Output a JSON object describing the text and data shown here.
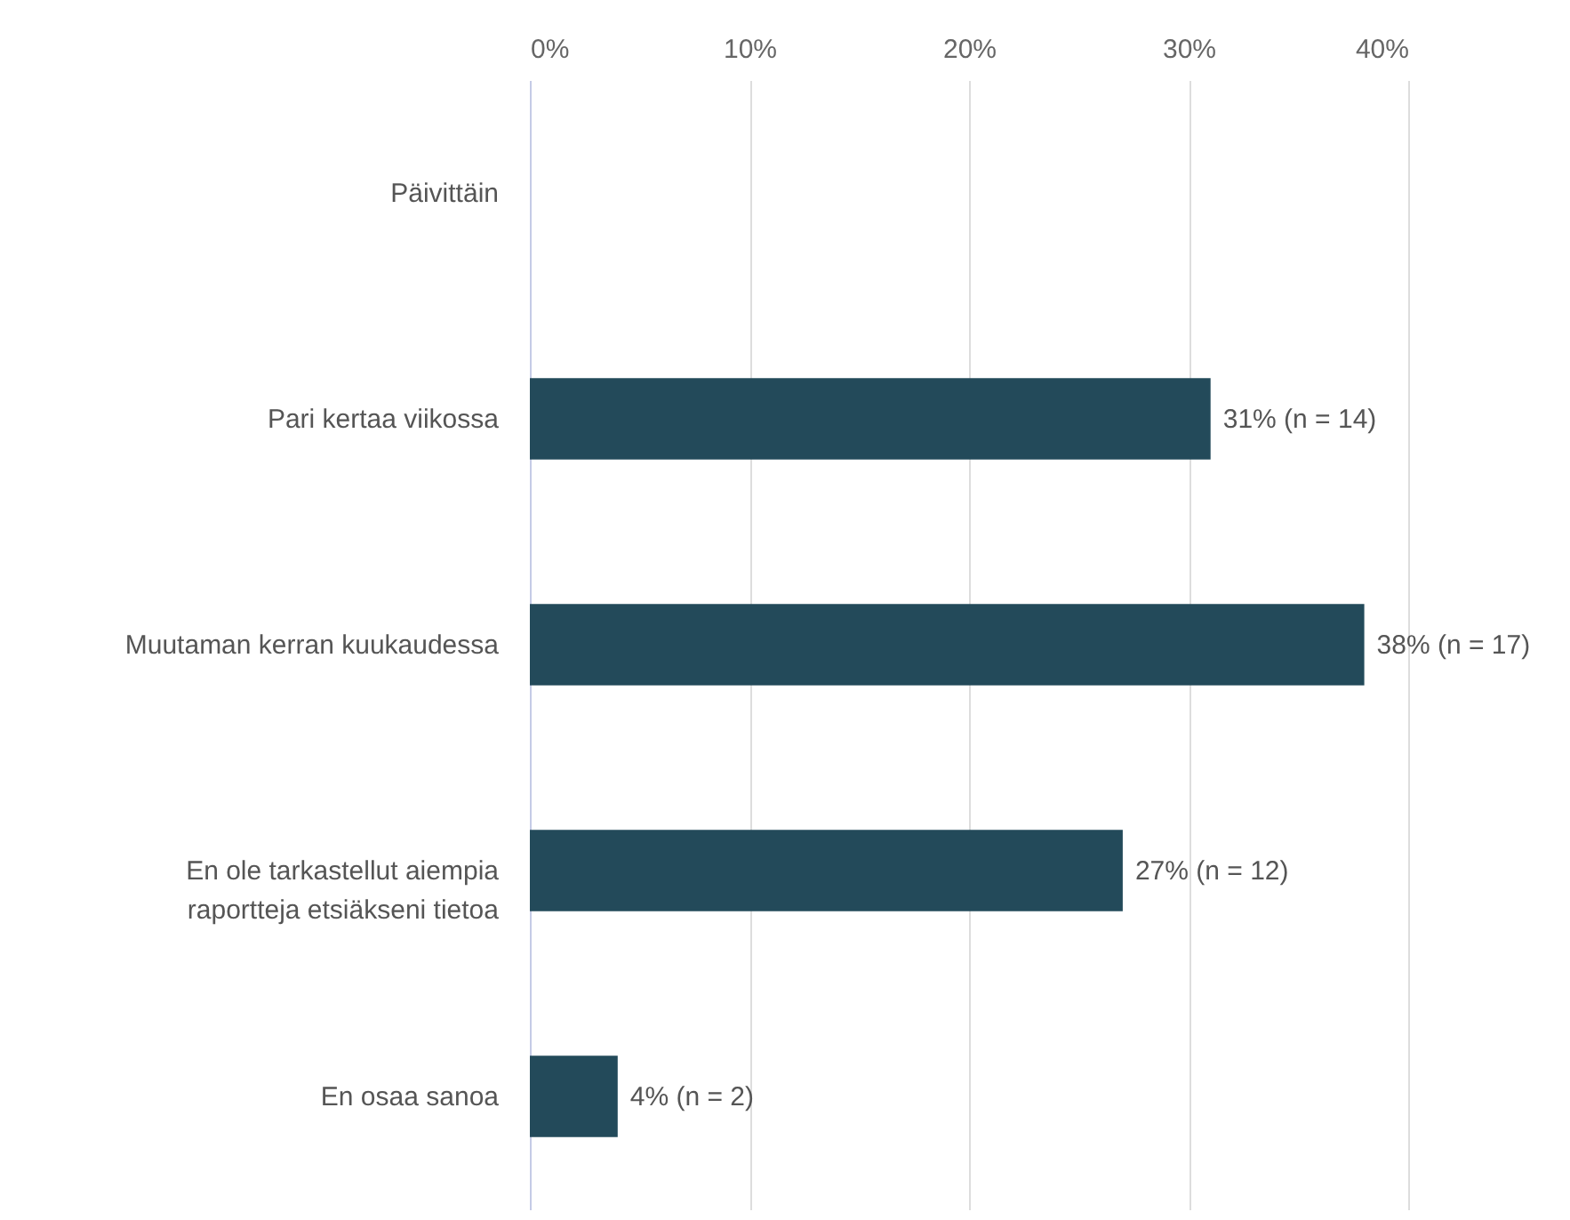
{
  "chart_data": {
    "type": "bar",
    "orientation": "horizontal",
    "categories": [
      "Päivittäin",
      "Pari kertaa viikossa",
      "Muutaman kerran kuukaudessa",
      "En ole tarkastellut aiempia raportteja etsiäkseni tietoa",
      "En osaa sanoa"
    ],
    "values": [
      0,
      31,
      38,
      27,
      4
    ],
    "value_labels": [
      null,
      "31% (n = 14)",
      "38% (n = 17)",
      "27% (n = 12)",
      "4% (n = 2)"
    ],
    "color": "#234a5a",
    "xlim": [
      0,
      40
    ],
    "xticks": [
      {
        "value": 0,
        "label": "0%"
      },
      {
        "value": 10,
        "label": "10%"
      },
      {
        "value": 20,
        "label": "20%"
      },
      {
        "value": 30,
        "label": "30%"
      },
      {
        "value": 40,
        "label": "40%"
      }
    ],
    "grid": "x"
  }
}
